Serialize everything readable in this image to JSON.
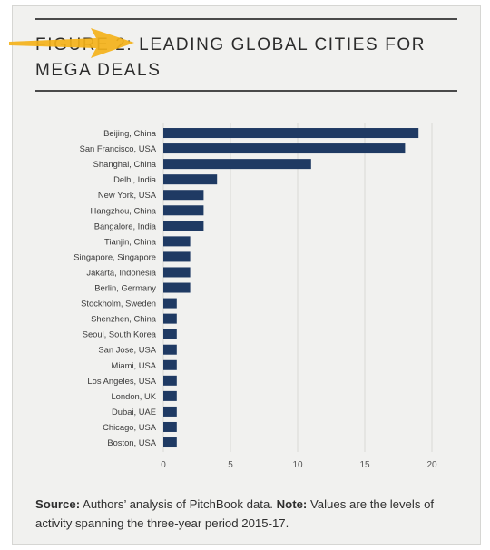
{
  "header": {
    "title": "FIGURE 2: LEADING GLOBAL CITIES FOR MEGA DEALS"
  },
  "footnote": {
    "source_label": "Source:",
    "source_text": " Authors’ analysis of PitchBook data. ",
    "note_label": "Note:",
    "note_text": " Values are the levels of activity spanning the three-year period 2015-17."
  },
  "colors": {
    "bar": "#1f3a63",
    "highlight_arrow": "#f4b21a",
    "grid": "#d9d9d6"
  },
  "chart_data": {
    "type": "bar",
    "orientation": "horizontal",
    "title": "",
    "xlabel": "",
    "ylabel": "",
    "xlim": [
      0,
      20
    ],
    "xticks": [
      0,
      5,
      10,
      15,
      20
    ],
    "grid": true,
    "categories": [
      "Beijing, China",
      "San Francisco, USA",
      "Shanghai, China",
      "Delhi, India",
      "New York, USA",
      "Hangzhou, China",
      "Bangalore, India",
      "Tianjin, China",
      "Singapore, Singapore",
      "Jakarta, Indonesia",
      "Berlin, Germany",
      "Stockholm, Sweden",
      "Shenzhen, China",
      "Seoul, South Korea",
      "San Jose, USA",
      "Miami, USA",
      "Los Angeles, USA",
      "London, UK",
      "Dubai, UAE",
      "Chicago, USA",
      "Boston, USA"
    ],
    "values": [
      19,
      18,
      11,
      4,
      3,
      3,
      3,
      2,
      2,
      2,
      2,
      1,
      1,
      1,
      1,
      1,
      1,
      1,
      1,
      1,
      1
    ]
  }
}
